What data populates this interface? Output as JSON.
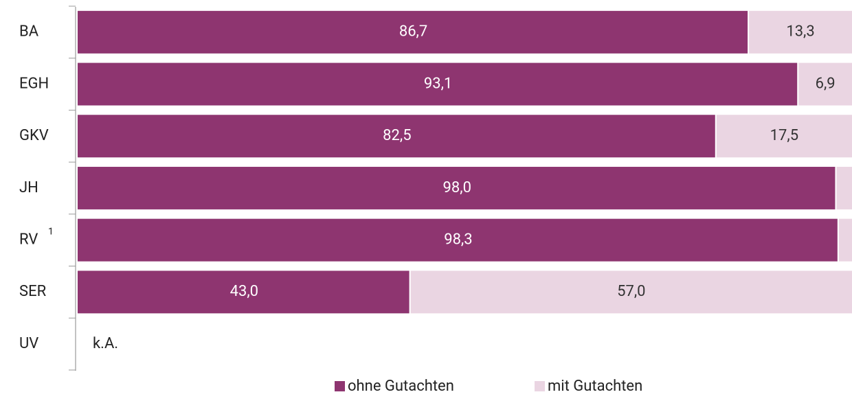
{
  "chart_data": {
    "type": "stacked_barh",
    "categories": [
      "BA",
      "EGH",
      "GKV",
      "JH",
      "RV",
      "SER",
      "UV"
    ],
    "category_superscripts": [
      null,
      null,
      null,
      null,
      "1",
      null,
      null
    ],
    "series": [
      {
        "name": "ohne Gutachten",
        "color": "#8e3570",
        "label_color": "#ffffff",
        "values": [
          86.7,
          93.1,
          82.5,
          98.0,
          98.3,
          43.0,
          null
        ],
        "value_labels": [
          "86,7",
          "93,1",
          "82,5",
          "98,0",
          "98,3",
          "43,0",
          null
        ]
      },
      {
        "name": "mit Gutachten",
        "color": "#ead5e2",
        "label_color": "#333333",
        "values": [
          13.3,
          6.9,
          17.5,
          2.0,
          1.7,
          57.0,
          null
        ],
        "value_labels": [
          "13,3",
          "6,9",
          "17,5",
          null,
          null,
          "57,0",
          null
        ]
      }
    ],
    "annotation": "k.A.",
    "xlim": [
      0,
      100
    ]
  }
}
